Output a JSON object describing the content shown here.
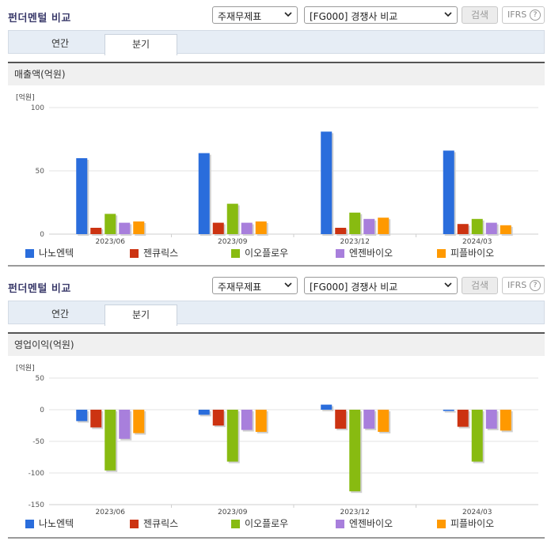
{
  "panels": [
    {
      "title": "펀더멘털 비교",
      "select1": "주재무제표",
      "select2": "[FG000] 경쟁사 비교",
      "search_label": "검색",
      "ifrs_label": "IFRS",
      "help_glyph": "?",
      "tabs": [
        "연간",
        "분기"
      ],
      "active_tab": "분기",
      "metric_label": "매출액(억원)",
      "unit_label": "[억원]"
    },
    {
      "title": "펀더멘털 비교",
      "select1": "주재무제표",
      "select2": "[FG000] 경쟁사 비교",
      "search_label": "검색",
      "ifrs_label": "IFRS",
      "help_glyph": "?",
      "tabs": [
        "연간",
        "분기"
      ],
      "active_tab": "분기",
      "metric_label": "영업이익(억원)",
      "unit_label": "[억원]"
    }
  ],
  "colors": {
    "나노엔텍": "#2a6ddc",
    "젠큐릭스": "#cc3311",
    "이오플로우": "#88bb11",
    "엔젠바이오": "#a87fdc",
    "피플바이오": "#ff9900"
  },
  "chart_data": [
    {
      "type": "bar",
      "title": "매출액(억원)",
      "ylabel": "[억원]",
      "ylim": [
        0,
        100
      ],
      "yticks": [
        0,
        50,
        100
      ],
      "categories": [
        "2023/06",
        "2023/09",
        "2023/12",
        "2024/03"
      ],
      "series": [
        {
          "name": "나노엔텍",
          "values": [
            60,
            64,
            81,
            66
          ]
        },
        {
          "name": "젠큐릭스",
          "values": [
            5,
            9,
            5,
            8
          ]
        },
        {
          "name": "이오플로우",
          "values": [
            16,
            24,
            17,
            12
          ]
        },
        {
          "name": "엔젠바이오",
          "values": [
            9,
            9,
            12,
            9
          ]
        },
        {
          "name": "피플바이오",
          "values": [
            10,
            10,
            13,
            7
          ]
        }
      ]
    },
    {
      "type": "bar",
      "title": "영업이익(억원)",
      "ylabel": "[억원]",
      "ylim": [
        -150,
        50
      ],
      "yticks": [
        -150,
        -100,
        -50,
        0,
        50
      ],
      "categories": [
        "2023/06",
        "2023/09",
        "2023/12",
        "2024/03"
      ],
      "series": [
        {
          "name": "나노엔텍",
          "values": [
            -18,
            -8,
            8,
            -2
          ]
        },
        {
          "name": "젠큐릭스",
          "values": [
            -28,
            -25,
            -30,
            -27
          ]
        },
        {
          "name": "이오플로우",
          "values": [
            -96,
            -82,
            -129,
            -82
          ]
        },
        {
          "name": "엔젠바이오",
          "values": [
            -46,
            -32,
            -30,
            -30
          ]
        },
        {
          "name": "피플바이오",
          "values": [
            -37,
            -35,
            -35,
            -33
          ]
        }
      ]
    }
  ]
}
